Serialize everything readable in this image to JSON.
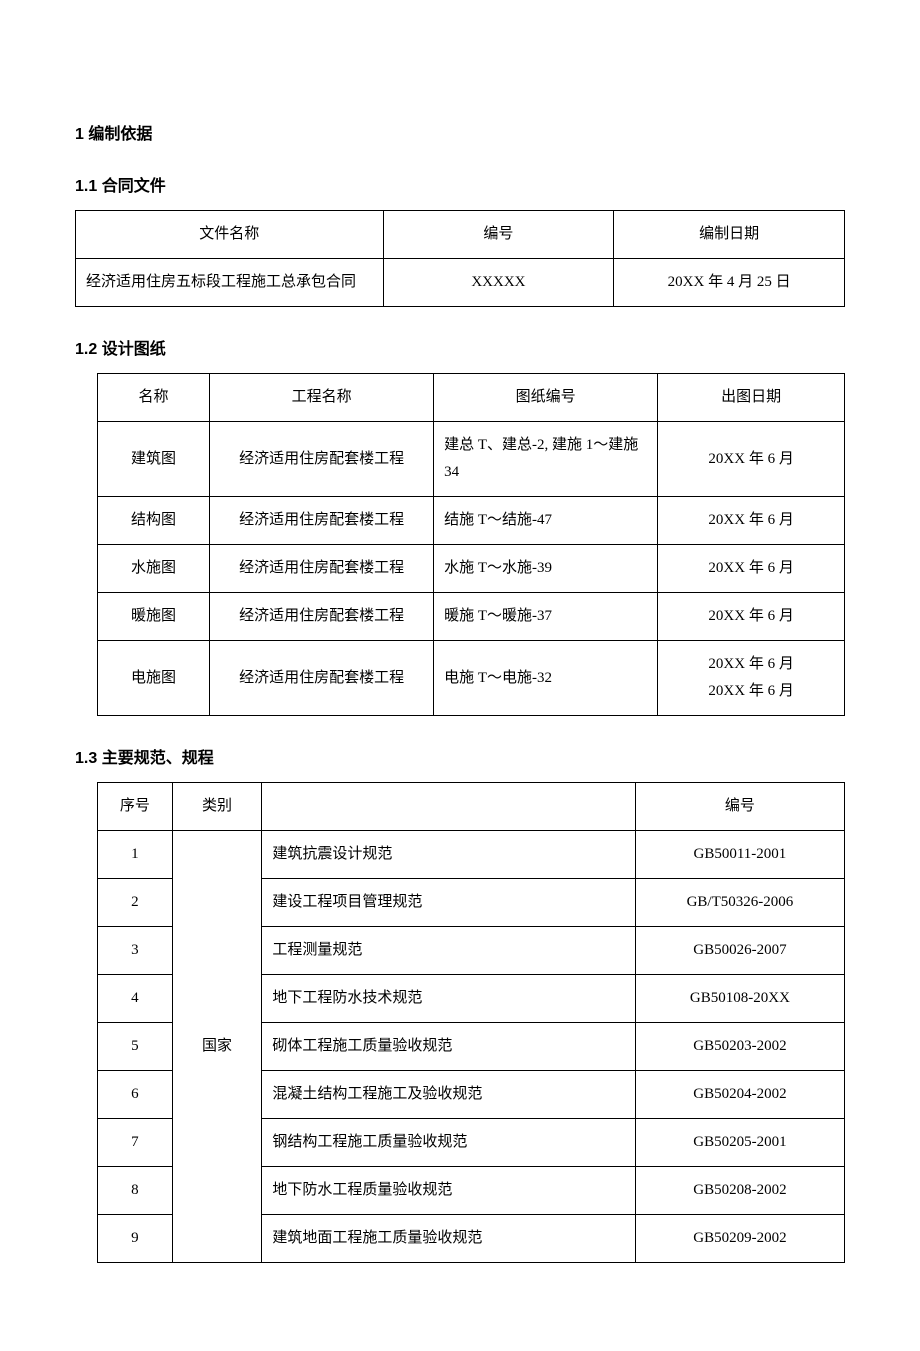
{
  "heading1": "1 编制依据",
  "section1_1": {
    "title": "1.1 合同文件",
    "headers": [
      "文件名称",
      "编号",
      "编制日期"
    ],
    "rows": [
      [
        "经济适用住房五标段工程施工总承包合同",
        "XXXXX",
        "20XX 年 4 月 25 日"
      ]
    ],
    "col_widths": [
      "40%",
      "30%",
      "30%"
    ]
  },
  "section1_2": {
    "title": "1.2 设计图纸",
    "headers": [
      "名称",
      "工程名称",
      "图纸编号",
      "出图日期"
    ],
    "rows": [
      [
        "建筑图",
        "经济适用住房配套楼工程",
        "建总 T、建总-2, 建施 1～建施 34",
        "20XX 年 6 月"
      ],
      [
        "结构图",
        "经济适用住房配套楼工程",
        "结施 T～结施-47",
        "20XX 年 6 月"
      ],
      [
        "水施图",
        "经济适用住房配套楼工程",
        "水施 T～水施-39",
        "20XX 年 6 月"
      ],
      [
        "暖施图",
        "经济适用住房配套楼工程",
        "暖施 T～暖施-37",
        "20XX 年 6 月"
      ],
      [
        "电施图",
        "经济适用住房配套楼工程",
        "电施 T～电施-32",
        "20XX 年 6 月\n20XX 年 6 月"
      ]
    ],
    "col_widths": [
      "15%",
      "30%",
      "30%",
      "25%"
    ]
  },
  "section1_3": {
    "title": "1.3 主要规范、规程",
    "headers": [
      "序号",
      "类别",
      "",
      "编号"
    ],
    "category": "国家",
    "rows": [
      [
        "1",
        "建筑抗震设计规范",
        "GB50011-2001"
      ],
      [
        "2",
        "建设工程项目管理规范",
        "GB/T50326-2006"
      ],
      [
        "3",
        "工程测量规范",
        "GB50026-2007"
      ],
      [
        "4",
        "地下工程防水技术规范",
        "GB50108-20XX"
      ],
      [
        "5",
        "砌体工程施工质量验收规范",
        "GB50203-2002"
      ],
      [
        "6",
        "混凝土结构工程施工及验收规范",
        "GB50204-2002"
      ],
      [
        "7",
        "钢结构工程施工质量验收规范",
        "GB50205-2001"
      ],
      [
        "8",
        "地下防水工程质量验收规范",
        "GB50208-2002"
      ],
      [
        "9",
        "建筑地面工程施工质量验收规范",
        "GB50209-2002"
      ]
    ],
    "col_widths": [
      "10%",
      "12%",
      "50%",
      "28%"
    ]
  }
}
